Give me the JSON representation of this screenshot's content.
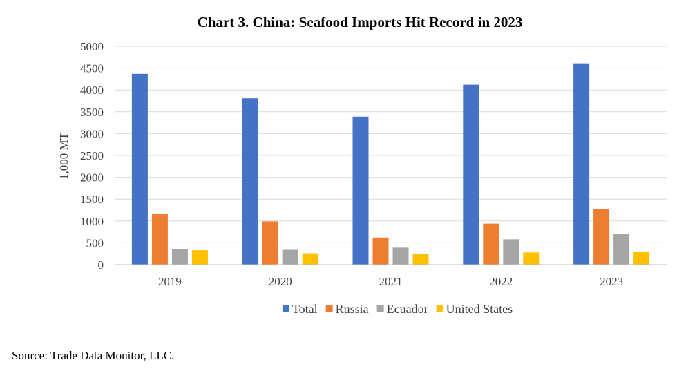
{
  "chart_data": {
    "type": "bar",
    "title": "Chart 3. China: Seafood Imports Hit Record in 2023",
    "xlabel": "",
    "ylabel": "1,000 MT",
    "ylim": [
      0,
      5000
    ],
    "yticks": [
      0,
      500,
      1000,
      1500,
      2000,
      2500,
      3000,
      3500,
      4000,
      4500,
      5000
    ],
    "grid": true,
    "legend_position": "bottom",
    "categories": [
      "2019",
      "2020",
      "2021",
      "2022",
      "2023"
    ],
    "series": [
      {
        "name": "Total",
        "color": "#4472C4",
        "values": [
          4370,
          3810,
          3390,
          4120,
          4610
        ]
      },
      {
        "name": "Russia",
        "color": "#ED7D31",
        "values": [
          1170,
          990,
          620,
          940,
          1270
        ]
      },
      {
        "name": "Ecuador",
        "color": "#A5A5A5",
        "values": [
          360,
          340,
          390,
          580,
          710
        ]
      },
      {
        "name": "United States",
        "color": "#FFC000",
        "values": [
          330,
          260,
          240,
          280,
          290
        ]
      }
    ]
  },
  "source": "Source: Trade Data Monitor, LLC."
}
